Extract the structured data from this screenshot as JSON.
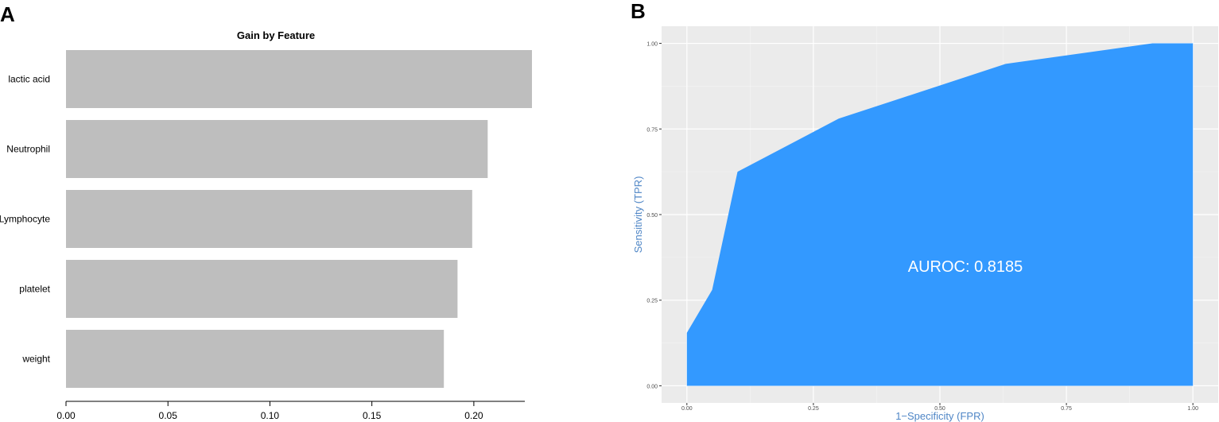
{
  "panels": {
    "a_label": "A",
    "b_label": "B"
  },
  "chart_data": [
    {
      "type": "bar",
      "orientation": "horizontal",
      "title": "Gain by Feature",
      "categories": [
        "lactic acid",
        "Neutrophil",
        "Lymphocyte",
        "platelet",
        "weight"
      ],
      "values": [
        0.2285,
        0.2068,
        0.1992,
        0.192,
        0.1853
      ],
      "xlim": [
        0.0,
        0.225
      ],
      "x_ticks": [
        "0.00",
        "0.05",
        "0.10",
        "0.15",
        "0.20"
      ],
      "x_tick_values": [
        0.0,
        0.05,
        0.1,
        0.15,
        0.2
      ],
      "xlabel": "",
      "ylabel": "",
      "bar_color": "#bebebe",
      "grid": false
    },
    {
      "type": "area",
      "xlabel": "1−Specificity (FPR)",
      "ylabel": "Sensitivity (TPR)",
      "annotation": "AUROC: 0.8185",
      "x": [
        0.0,
        0.0,
        0.05,
        0.1,
        0.3,
        0.63,
        0.92,
        1.0,
        1.0
      ],
      "y": [
        0.0,
        0.155,
        0.28,
        0.625,
        0.78,
        0.94,
        1.0,
        1.0,
        0.0
      ],
      "xlim": [
        -0.05,
        1.05
      ],
      "ylim": [
        -0.05,
        1.05
      ],
      "x_ticks": [
        "0.00",
        "0.25",
        "0.50",
        "0.75",
        "1.00"
      ],
      "x_tick_values": [
        0.0,
        0.25,
        0.5,
        0.75,
        1.0
      ],
      "y_ticks": [
        "0.00",
        "0.25",
        "0.50",
        "0.75",
        "1.00"
      ],
      "y_tick_values": [
        0.0,
        0.25,
        0.5,
        0.75,
        1.0
      ],
      "fill_color": "#3399ff",
      "panel_background": "#ebebeb",
      "label_color": "#4f86c6",
      "grid": true
    }
  ]
}
